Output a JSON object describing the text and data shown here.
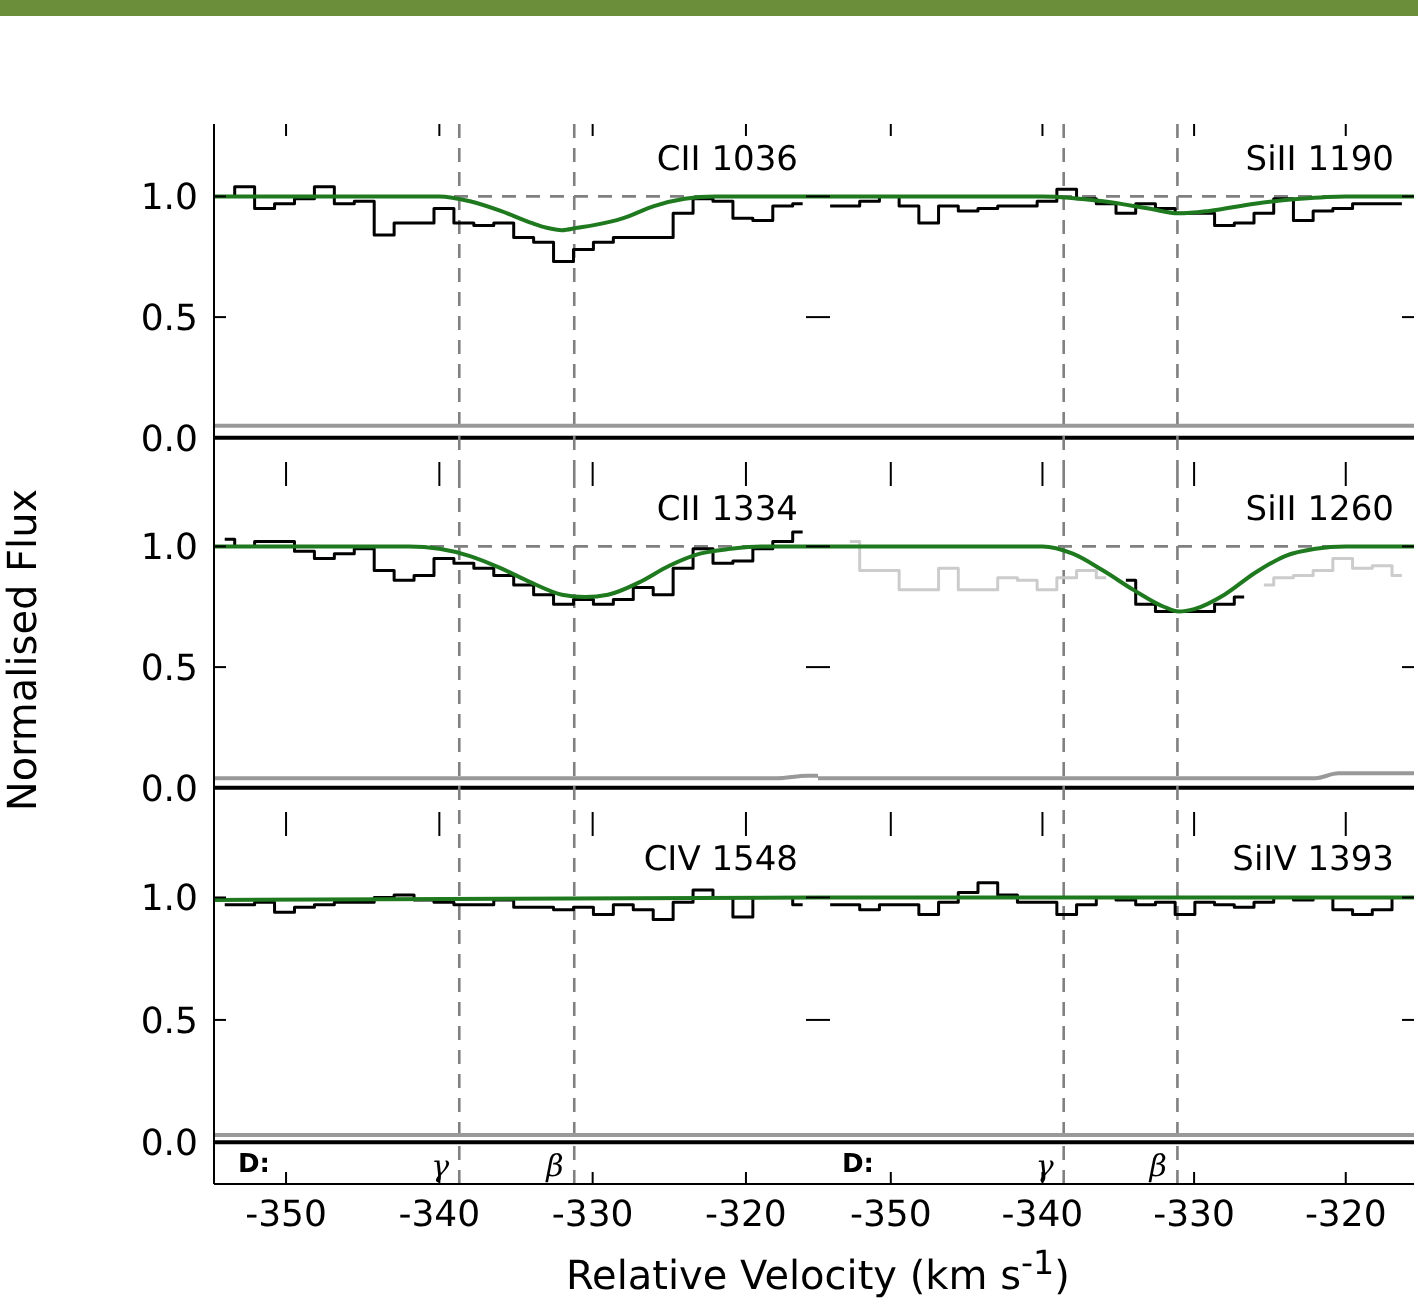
{
  "chart_data": [
    {
      "type": "step",
      "title": "CII 1036",
      "xlim": [
        -354.7,
        -315.3
      ],
      "ylim": [
        -0.15,
        1.3
      ],
      "yticks": [
        {
          "value": 0,
          "label": "0.0"
        },
        {
          "value": 0.5,
          "label": "0.5"
        },
        {
          "value": 1,
          "label": "1.0"
        }
      ],
      "xticks": [
        -350,
        -340,
        -330,
        -320
      ],
      "tick_labels": "y",
      "x": [
        -354.0,
        -352.7,
        -351.4,
        -350.1,
        -348.8,
        -347.5,
        -346.2,
        -344.9,
        -343.6,
        -342.3,
        -341.0,
        -339.7,
        -338.4,
        -337.1,
        -335.8,
        -334.5,
        -333.2,
        -331.9,
        -330.6,
        -329.3,
        -328.0,
        -326.7,
        -325.4,
        -324.1,
        -322.8,
        -321.5,
        -320.2,
        -318.9,
        -317.6,
        -316.3
      ],
      "series": [
        {
          "type": "step",
          "color": "#000000",
          "values": [
            1.0,
            1.04,
            0.95,
            0.97,
            0.99,
            1.04,
            0.97,
            0.98,
            0.84,
            0.89,
            0.89,
            0.95,
            0.89,
            0.88,
            0.89,
            0.83,
            0.81,
            0.73,
            0.78,
            0.81,
            0.83,
            0.83,
            0.83,
            0.93,
            0.99,
            0.98,
            0.91,
            0.9,
            0.96,
            0.97
          ]
        },
        {
          "type": "line",
          "color": "#1f7a1f",
          "x": [
            -354.7,
            -342,
            -340,
            -338,
            -336,
            -334,
            -333,
            -332,
            -331,
            -330,
            -328,
            -326,
            -324,
            -322,
            -315.3
          ],
          "values": [
            1.0,
            1.0,
            1.0,
            0.98,
            0.94,
            0.89,
            0.87,
            0.86,
            0.87,
            0.88,
            0.91,
            0.96,
            0.99,
            1.0,
            1.0
          ]
        },
        {
          "type": "line",
          "color": "#999999",
          "x": [
            -354.7,
            -315.3
          ],
          "values": [
            0.05,
            0.05
          ]
        }
      ],
      "ref_lines": [
        {
          "axis": "y",
          "value": 1,
          "color": "#808080",
          "line_style": "dashed"
        },
        {
          "axis": "y",
          "value": 0,
          "color": "#000000",
          "line_style": "solid"
        },
        {
          "axis": "x",
          "value": -338.7,
          "color": "#808080",
          "line_style": "dashed"
        },
        {
          "axis": "x",
          "value": -331.2,
          "color": "#808080",
          "line_style": "dashed"
        }
      ]
    },
    {
      "type": "step",
      "title": "SiII 1190",
      "xlim": [
        -354.8,
        -315.5
      ],
      "ylim": [
        -0.15,
        1.3
      ],
      "yticks": [
        0,
        0.5,
        1
      ],
      "xticks": [
        -350,
        -340,
        -330,
        -320
      ],
      "tick_labels": false,
      "x": [
        -354.0,
        -352.7,
        -351.4,
        -350.1,
        -348.8,
        -347.5,
        -346.2,
        -344.9,
        -343.6,
        -342.3,
        -341.0,
        -339.7,
        -338.4,
        -337.1,
        -335.8,
        -334.5,
        -333.2,
        -331.9,
        -330.6,
        -329.3,
        -328.0,
        -326.7,
        -325.4,
        -324.1,
        -322.8,
        -321.5,
        -320.2,
        -318.9,
        -317.6,
        -316.3
      ],
      "series": [
        {
          "type": "step",
          "color": "#000000",
          "values": [
            0.96,
            0.96,
            0.98,
            1.0,
            0.96,
            0.89,
            0.96,
            0.94,
            0.95,
            0.96,
            0.96,
            0.98,
            1.03,
            0.99,
            0.97,
            0.93,
            0.97,
            0.95,
            0.93,
            0.93,
            0.88,
            0.89,
            0.93,
            0.99,
            0.9,
            0.94,
            0.95,
            0.97,
            0.97,
            0.97
          ]
        },
        {
          "type": "line",
          "color": "#1f7a1f",
          "x": [
            -354.8,
            -340,
            -336,
            -333,
            -331,
            -329,
            -326,
            -323,
            -320,
            -315.5
          ],
          "values": [
            1.0,
            1.0,
            0.98,
            0.95,
            0.93,
            0.94,
            0.97,
            0.99,
            1.0,
            1.0
          ]
        },
        {
          "type": "line",
          "color": "#999999",
          "x": [
            -354.8,
            -315.5
          ],
          "values": [
            0.05,
            0.05
          ]
        }
      ],
      "ref_lines": [
        {
          "axis": "y",
          "value": 1,
          "color": "#808080",
          "line_style": "dashed"
        },
        {
          "axis": "y",
          "value": 0,
          "color": "#000000",
          "line_style": "solid"
        },
        {
          "axis": "x",
          "value": -338.6,
          "color": "#808080",
          "line_style": "dashed"
        },
        {
          "axis": "x",
          "value": -331.1,
          "color": "#808080",
          "line_style": "dashed"
        }
      ]
    },
    {
      "type": "step",
      "title": "CII 1334",
      "ylabel": "Normalised Flux",
      "xlim": [
        -354.7,
        -315.3
      ],
      "ylim": [
        -0.15,
        1.3
      ],
      "yticks": [
        {
          "value": 0,
          "label": "0.0"
        },
        {
          "value": 0.5,
          "label": "0.5"
        },
        {
          "value": 1,
          "label": "1.0"
        }
      ],
      "xticks": [
        -350,
        -340,
        -330,
        -320
      ],
      "tick_labels": "y",
      "x": [
        -354.0,
        -352.7,
        -351.4,
        -350.1,
        -348.8,
        -347.5,
        -346.2,
        -344.9,
        -343.6,
        -342.3,
        -341.0,
        -339.7,
        -338.4,
        -337.1,
        -335.8,
        -334.5,
        -333.2,
        -331.9,
        -330.6,
        -329.3,
        -328.0,
        -326.7,
        -325.4,
        -324.1,
        -322.8,
        -321.5,
        -320.2,
        -318.9,
        -317.6,
        -316.3
      ],
      "series": [
        {
          "type": "step",
          "color": "#000000",
          "values": [
            1.03,
            1.0,
            1.02,
            1.02,
            0.98,
            0.95,
            0.97,
            0.99,
            0.9,
            0.86,
            0.88,
            0.95,
            0.93,
            0.91,
            0.88,
            0.84,
            0.8,
            0.76,
            0.78,
            0.76,
            0.78,
            0.83,
            0.8,
            0.91,
            0.99,
            0.93,
            0.94,
            0.99,
            1.02,
            1.06
          ]
        },
        {
          "type": "line",
          "color": "#1f7a1f",
          "x": [
            -354.7,
            -342,
            -340,
            -338,
            -336,
            -334,
            -332,
            -330.5,
            -329,
            -327,
            -325,
            -323,
            -321,
            -319,
            -315.3
          ],
          "values": [
            1.0,
            1.0,
            0.99,
            0.96,
            0.91,
            0.85,
            0.8,
            0.79,
            0.8,
            0.85,
            0.92,
            0.97,
            0.99,
            1.0,
            1.0
          ]
        },
        {
          "type": "line",
          "color": "#999999",
          "x": [
            -354.7,
            -318,
            -316,
            -315.3
          ],
          "values": [
            0.04,
            0.04,
            0.05,
            0.05
          ]
        }
      ],
      "ref_lines": [
        {
          "axis": "y",
          "value": 1,
          "color": "#808080",
          "line_style": "dashed"
        },
        {
          "axis": "y",
          "value": 0,
          "color": "#000000",
          "line_style": "solid"
        },
        {
          "axis": "x",
          "value": -338.7,
          "color": "#808080",
          "line_style": "dashed"
        },
        {
          "axis": "x",
          "value": -331.2,
          "color": "#808080",
          "line_style": "dashed"
        }
      ]
    },
    {
      "type": "step",
      "title": "SiII 1260",
      "xlim": [
        -354.8,
        -315.5
      ],
      "ylim": [
        -0.15,
        1.3
      ],
      "yticks": [
        0,
        0.5,
        1
      ],
      "xticks": [
        -350,
        -340,
        -330,
        -320
      ],
      "tick_labels": false,
      "series": [
        {
          "type": "step",
          "color": "#cccccc",
          "x": [
            -352.7,
            -351.4,
            -350.1,
            -348.8,
            -347.5,
            -346.2,
            -344.9,
            -343.6,
            -342.3,
            -341.0,
            -339.7,
            -338.4,
            -337.1,
            -335.8,
            -334.5,
            -333.2,
            -331.9,
            -330.6,
            -329.3,
            -328.0,
            -326.7,
            -325.4,
            -324.1,
            -322.8,
            -321.5,
            -320.2,
            -318.9,
            -317.6,
            -316.3
          ],
          "values": [
            1.02,
            0.9,
            0.9,
            0.82,
            0.82,
            0.91,
            0.82,
            0.82,
            0.87,
            0.86,
            0.82,
            0.87,
            0.9,
            0.87,
            null,
            null,
            null,
            null,
            null,
            null,
            null,
            0.84,
            0.87,
            0.88,
            0.9,
            0.95,
            0.91,
            0.92,
            0.88
          ]
        },
        {
          "type": "step",
          "color": "#000000",
          "x": [
            -334.5,
            -333.2,
            -331.9,
            -330.6,
            -329.3,
            -328.0,
            -326.7
          ],
          "values": [
            0.86,
            0.76,
            0.73,
            0.73,
            0.73,
            0.76,
            0.79
          ]
        },
        {
          "type": "line",
          "color": "#1f7a1f",
          "x": [
            -354.8,
            -340,
            -338,
            -336,
            -334,
            -332,
            -331,
            -330,
            -328,
            -326,
            -324,
            -322,
            -320,
            -315.5
          ],
          "values": [
            1.0,
            1.0,
            0.97,
            0.9,
            0.82,
            0.75,
            0.73,
            0.74,
            0.8,
            0.89,
            0.96,
            0.99,
            1.0,
            1.0
          ]
        },
        {
          "type": "line",
          "color": "#999999",
          "x": [
            -354.8,
            -322,
            -320.5,
            -315.5
          ],
          "values": [
            0.04,
            0.04,
            0.06,
            0.06
          ]
        }
      ],
      "ref_lines": [
        {
          "axis": "y",
          "value": 1,
          "color": "#808080",
          "line_style": "dashed"
        },
        {
          "axis": "y",
          "value": 0,
          "color": "#000000",
          "line_style": "solid"
        },
        {
          "axis": "x",
          "value": -338.6,
          "color": "#808080",
          "line_style": "dashed"
        },
        {
          "axis": "x",
          "value": -331.1,
          "color": "#808080",
          "line_style": "dashed"
        }
      ]
    },
    {
      "type": "step",
      "title": "CIV 1548",
      "xlabel": "Relative Velocity (km s$^{-1}$)",
      "xlim": [
        -354.7,
        -315.3
      ],
      "ylim": [
        -0.17,
        1.3
      ],
      "yticks": [
        {
          "value": 0,
          "label": "0.0"
        },
        {
          "value": 0.5,
          "label": "0.5"
        },
        {
          "value": 1,
          "label": "1.0"
        }
      ],
      "xticks": [
        -350,
        -340,
        -330,
        -320
      ],
      "x": [
        -354.0,
        -352.7,
        -351.4,
        -350.1,
        -348.8,
        -347.5,
        -346.2,
        -344.9,
        -343.6,
        -342.3,
        -341.0,
        -339.7,
        -338.4,
        -337.1,
        -335.8,
        -334.5,
        -333.2,
        -331.9,
        -330.6,
        -329.3,
        -328.0,
        -326.7,
        -325.4,
        -324.1,
        -322.8,
        -321.5,
        -320.2,
        -318.9,
        -317.6,
        -316.3
      ],
      "series": [
        {
          "type": "step",
          "color": "#000000",
          "values": [
            0.97,
            0.97,
            0.98,
            0.94,
            0.96,
            0.97,
            0.98,
            0.98,
            1.0,
            1.01,
            0.99,
            0.98,
            0.97,
            0.97,
            0.99,
            0.96,
            0.96,
            0.95,
            0.96,
            0.93,
            0.97,
            0.95,
            0.91,
            0.98,
            1.03,
            1.0,
            0.92,
            1.0,
            1.0,
            0.97
          ]
        },
        {
          "type": "line",
          "color": "#1f7a1f",
          "x": [
            -354.7,
            -315.3
          ],
          "values": [
            0.99,
            1.0
          ]
        },
        {
          "type": "line",
          "color": "#999999",
          "x": [
            -354.7,
            -315.3
          ],
          "values": [
            0.03,
            0.03
          ]
        }
      ],
      "ref_lines": [
        {
          "axis": "y",
          "value": 0,
          "color": "#000000",
          "line_style": "solid"
        },
        {
          "axis": "x",
          "value": -338.7,
          "color": "#808080",
          "line_style": "dashed"
        },
        {
          "axis": "x",
          "value": -331.2,
          "color": "#808080",
          "line_style": "dashed"
        }
      ],
      "annotations": [
        "D:",
        {
          "text": "γ",
          "x": -338.7,
          "y": -0.1
        },
        {
          "text": "β",
          "x": -331.2,
          "y": -0.1
        }
      ]
    },
    {
      "type": "step",
      "title": "SiIV 1393",
      "xlim": [
        -354.8,
        -315.5
      ],
      "ylim": [
        -0.17,
        1.3
      ],
      "yticks": [
        0,
        0.5,
        1
      ],
      "xticks": [
        -350,
        -340,
        -330,
        -320
      ],
      "tick_labels": "x",
      "x": [
        -354.0,
        -352.7,
        -351.4,
        -350.1,
        -348.8,
        -347.5,
        -346.2,
        -344.9,
        -343.6,
        -342.3,
        -341.0,
        -339.7,
        -338.4,
        -337.1,
        -335.8,
        -334.5,
        -333.2,
        -331.9,
        -330.6,
        -329.3,
        -328.0,
        -326.7,
        -325.4,
        -324.1,
        -322.8,
        -321.5,
        -320.2,
        -318.9,
        -317.6,
        -316.3
      ],
      "series": [
        {
          "type": "step",
          "color": "#000000",
          "values": [
            0.97,
            0.97,
            0.95,
            0.97,
            0.97,
            0.93,
            0.98,
            1.02,
            1.06,
            1.01,
            0.98,
            0.98,
            0.93,
            0.97,
            1.0,
            0.99,
            0.97,
            0.98,
            0.93,
            0.98,
            0.97,
            0.96,
            0.98,
            1.0,
            0.99,
            1.0,
            0.95,
            0.93,
            0.95,
            1.0
          ]
        },
        {
          "type": "line",
          "color": "#1f7a1f",
          "x": [
            -354.8,
            -315.5
          ],
          "values": [
            1.0,
            1.0
          ]
        },
        {
          "type": "line",
          "color": "#999999",
          "x": [
            -354.8,
            -315.5
          ],
          "values": [
            0.03,
            0.03
          ]
        }
      ],
      "ref_lines": [
        {
          "axis": "y",
          "value": 0,
          "color": "#000000",
          "line_style": "solid"
        },
        {
          "axis": "x",
          "value": -338.6,
          "color": "#808080",
          "line_style": "dashed"
        },
        {
          "axis": "x",
          "value": -331.1,
          "color": "#808080",
          "line_style": "dashed"
        }
      ],
      "annotations": [
        "D:",
        {
          "text": "γ",
          "x": -338.6,
          "y": -0.1
        },
        {
          "text": "β",
          "x": -331.1,
          "y": -0.1
        }
      ]
    }
  ]
}
